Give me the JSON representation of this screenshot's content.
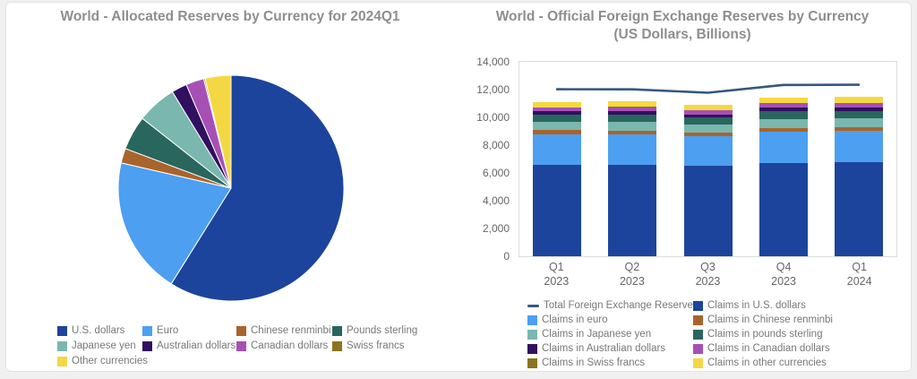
{
  "page": {
    "background": "#f0f0f0",
    "card_background": "#ffffff"
  },
  "colors": {
    "title_text": "#8e8e8e",
    "legend_text": "#787878",
    "axis_text": "#666666",
    "plot_border": "#dcdcdc"
  },
  "chart_data": [
    {
      "type": "pie",
      "title": "World - Allocated Reserves by Currency for 2024Q1",
      "legend_position": "bottom",
      "unit": "percent of allocated reserves",
      "slices": [
        {
          "label": "U.S. dollars",
          "value": 58.9,
          "color": "#1c449c"
        },
        {
          "label": "Euro",
          "value": 19.7,
          "color": "#4d9ff1"
        },
        {
          "label": "Chinese renminbi",
          "value": 2.1,
          "color": "#a9642c"
        },
        {
          "label": "Pounds sterling",
          "value": 4.9,
          "color": "#29665e"
        },
        {
          "label": "Japanese yen",
          "value": 5.7,
          "color": "#7ab7ae"
        },
        {
          "label": "Australian dollars",
          "value": 2.2,
          "color": "#30105f"
        },
        {
          "label": "Canadian dollars",
          "value": 2.6,
          "color": "#a650b5"
        },
        {
          "label": "Swiss francs",
          "value": 0.2,
          "color": "#8d7420"
        },
        {
          "label": "Other currencies",
          "value": 3.7,
          "color": "#f4d843"
        }
      ]
    },
    {
      "type": "bar",
      "stacked": true,
      "title": "World - Official Foreign Exchange Reserves by Currency",
      "subtitle": "(US Dollars, Billions)",
      "legend_position": "bottom",
      "grid": false,
      "ylim": [
        0,
        14000
      ],
      "yticks": [
        0,
        2000,
        4000,
        6000,
        8000,
        10000,
        12000,
        14000
      ],
      "categories": [
        [
          "Q1",
          "2023"
        ],
        [
          "Q2",
          "2023"
        ],
        [
          "Q3",
          "2023"
        ],
        [
          "Q4",
          "2023"
        ],
        [
          "Q1",
          "2024"
        ]
      ],
      "series": [
        {
          "name": "Claims in U.S. dollars",
          "color": "#1c449c",
          "values": [
            6576,
            6575,
            6500,
            6687,
            6775
          ]
        },
        {
          "name": "Claims in euro",
          "color": "#4d9ff1",
          "values": [
            2225,
            2213,
            2147,
            2288,
            2246
          ]
        },
        {
          "name": "Claims in Chinese renminbi",
          "color": "#a9642c",
          "values": [
            272,
            265,
            244,
            262,
            246
          ]
        },
        {
          "name": "Claims in Japanese yen",
          "color": "#7ab7ae",
          "values": [
            612,
            603,
            567,
            653,
            658
          ]
        },
        {
          "name": "Claims in pounds sterling",
          "color": "#29665e",
          "values": [
            542,
            553,
            534,
            568,
            560
          ]
        },
        {
          "name": "Claims in Australian dollars",
          "color": "#30105f",
          "values": [
            219,
            229,
            224,
            239,
            250
          ]
        },
        {
          "name": "Claims in Canadian dollars",
          "color": "#a650b5",
          "values": [
            272,
            279,
            272,
            294,
            296
          ]
        },
        {
          "name": "Claims in Swiss francs",
          "color": "#8d7420",
          "values": [
            26,
            29,
            26,
            27,
            27
          ]
        },
        {
          "name": "Claims in other currencies",
          "color": "#f4d843",
          "values": [
            385,
            391,
            406,
            438,
            420
          ]
        }
      ],
      "line_series": {
        "name": "Total Foreign Exchange Reserves",
        "color": "#35577e",
        "values": [
          12025,
          12018,
          11777,
          12335,
          12348
        ]
      }
    }
  ]
}
